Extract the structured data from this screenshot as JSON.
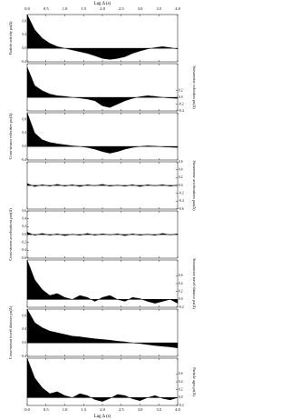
{
  "lag_axis": {
    "label": "Lag Δ (s)",
    "xlim": [
      0,
      4
    ],
    "xticks": [
      {
        "value": 0,
        "label": "0.0"
      },
      0.5,
      {
        "value": 1,
        "label": "1.0"
      },
      1.5,
      {
        "value": 2,
        "label": "2.0"
      },
      2.5,
      {
        "value": 3,
        "label": "3.0"
      },
      3.5,
      {
        "value": 4,
        "label": "4.0"
      }
    ]
  },
  "chart_data": [
    {
      "type": "area",
      "y_label": "Particle activity ρa(Δ)",
      "side": "left",
      "color": "#000000",
      "x": [
        0,
        0.2,
        0.4,
        0.6,
        0.8,
        1,
        1.2,
        1.4,
        1.6,
        1.8,
        2,
        2.2,
        2.4,
        2.6,
        2.8,
        3,
        3.2,
        3.4,
        3.6,
        3.8,
        4
      ],
      "values": [
        1.0,
        0.55,
        0.3,
        0.15,
        0.05,
        0,
        -0.05,
        -0.1,
        -0.15,
        -0.22,
        -0.3,
        -0.33,
        -0.3,
        -0.25,
        -0.15,
        -0.08,
        -0.02,
        0.02,
        0.05,
        0.02,
        -0.02
      ],
      "ylim": [
        -0.4,
        1.0
      ],
      "yticks": [
        -0.4,
        {
          "value": 0,
          "label": "0.0"
        },
        0.4,
        0.8
      ]
    },
    {
      "type": "area",
      "y_label": "Streamwise velocities ρu(Δ)",
      "side": "right",
      "color": "#000000",
      "x": [
        0,
        0.2,
        0.4,
        0.6,
        0.8,
        1,
        1.2,
        1.4,
        1.6,
        1.8,
        2,
        2.2,
        2.4,
        2.6,
        2.8,
        3,
        3.2,
        3.4,
        3.6,
        3.8,
        4
      ],
      "values": [
        0.9,
        0.35,
        0.2,
        0.1,
        0.05,
        0.03,
        0,
        -0.02,
        -0.05,
        -0.1,
        -0.25,
        -0.3,
        -0.2,
        -0.1,
        -0.03,
        0.02,
        0.05,
        0.03,
        0,
        -0.02,
        -0.03
      ],
      "ylim": [
        -0.4,
        1.0
      ],
      "yticks": [
        -0.4,
        -0.2,
        {
          "value": 0,
          "label": "0.0"
        },
        0.2
      ]
    },
    {
      "type": "area",
      "y_label": "Cross-stream velocities ρw(Δ)",
      "side": "left",
      "color": "#000000",
      "x": [
        0,
        0.2,
        0.4,
        0.6,
        0.8,
        1,
        1.2,
        1.4,
        1.6,
        1.8,
        2,
        2.2,
        2.4,
        2.6,
        2.8,
        3,
        3.2,
        3.4,
        3.6,
        3.8,
        4
      ],
      "values": [
        1.0,
        0.4,
        0.2,
        0.12,
        0.08,
        0.05,
        0.02,
        0,
        -0.03,
        -0.08,
        -0.15,
        -0.2,
        -0.15,
        -0.08,
        -0.03,
        0,
        0.02,
        0.01,
        -0.01,
        -0.02,
        -0.03
      ],
      "ylim": [
        -0.4,
        1.0
      ],
      "yticks": [
        -0.4,
        {
          "value": 0,
          "label": "0.0"
        },
        0.4,
        0.8
      ]
    },
    {
      "type": "area",
      "y_label": "Streamwise accelerations ρax(Δ)",
      "side": "right",
      "color": "#000000",
      "x": [
        0,
        0.2,
        0.4,
        0.6,
        0.8,
        1,
        1.2,
        1.4,
        1.6,
        1.8,
        2,
        2.2,
        2.4,
        2.6,
        2.8,
        3,
        3.2,
        3.4,
        3.6,
        3.8,
        4
      ],
      "values": [
        0.05,
        -0.03,
        0.02,
        -0.02,
        0.03,
        -0.02,
        0.02,
        -0.03,
        0.02,
        -0.01,
        0.03,
        -0.02,
        0.01,
        -0.02,
        0.02,
        -0.03,
        0.02,
        -0.01,
        0.02,
        -0.02,
        0.01
      ],
      "ylim": [
        -0.6,
        0.6
      ],
      "yticks": [
        -0.6,
        -0.4,
        -0.2,
        {
          "value": 0,
          "label": "0.0"
        },
        0.2,
        0.4,
        0.6
      ]
    },
    {
      "type": "area",
      "y_label": "Cross-stream accelerations ρaz(Δ)",
      "side": "left",
      "color": "#000000",
      "x": [
        0,
        0.2,
        0.4,
        0.6,
        0.8,
        1,
        1.2,
        1.4,
        1.6,
        1.8,
        2,
        2.2,
        2.4,
        2.6,
        2.8,
        3,
        3.2,
        3.4,
        3.6,
        3.8,
        4
      ],
      "values": [
        0.06,
        -0.02,
        0.03,
        -0.02,
        0.02,
        -0.03,
        0.01,
        -0.02,
        0.03,
        -0.02,
        0.02,
        -0.01,
        0.02,
        -0.03,
        0.02,
        -0.02,
        0.01,
        -0.02,
        0.03,
        -0.01,
        0.02
      ],
      "ylim": [
        -0.6,
        0.6
      ],
      "yticks": [
        -0.6,
        -0.4,
        -0.2,
        {
          "value": 0,
          "label": "0.0"
        },
        0.2,
        0.4,
        0.6
      ]
    },
    {
      "type": "area",
      "y_label": "Streamwise travel distance ρx(Δ)",
      "side": "right",
      "color": "#000000",
      "x": [
        0,
        0.2,
        0.4,
        0.6,
        0.8,
        1,
        1.2,
        1.4,
        1.6,
        1.8,
        2,
        2.2,
        2.4,
        2.6,
        2.8,
        3,
        3.2,
        3.4,
        3.6,
        3.8,
        4
      ],
      "values": [
        1.0,
        0.5,
        0.25,
        0.1,
        0.15,
        0.05,
        0,
        0.1,
        0.05,
        -0.05,
        0.05,
        0.1,
        0,
        -0.05,
        0.05,
        0.02,
        -0.05,
        -0.1,
        -0.05,
        0,
        -0.1
      ],
      "ylim": [
        -0.2,
        1.0
      ],
      "yticks": [
        -0.2,
        {
          "value": 0,
          "label": "0.0"
        },
        0.2,
        0.4,
        0.6
      ]
    },
    {
      "type": "area",
      "y_label": "Cross-stream travel distance ρz(Δ)",
      "side": "left",
      "color": "#000000",
      "x": [
        0,
        0.2,
        0.4,
        0.6,
        0.8,
        1,
        1.2,
        1.4,
        1.6,
        1.8,
        2,
        2.2,
        2.4,
        2.6,
        2.8,
        3,
        3.2,
        3.4,
        3.6,
        3.8,
        4
      ],
      "values": [
        1.0,
        0.6,
        0.45,
        0.35,
        0.3,
        0.25,
        0.2,
        0.18,
        0.15,
        0.12,
        0.1,
        0.08,
        0.05,
        0.03,
        0,
        -0.02,
        -0.05,
        -0.08,
        -0.1,
        -0.12,
        -0.15
      ],
      "ylim": [
        -0.4,
        1.0
      ],
      "yticks": [
        -0.4,
        {
          "value": 0,
          "label": "0.0"
        },
        0.4,
        0.8
      ]
    },
    {
      "type": "area",
      "y_label": "Particle ages ρτ(Δ)",
      "side": "right",
      "color": "#000000",
      "x": [
        0,
        0.2,
        0.4,
        0.6,
        0.8,
        1,
        1.2,
        1.4,
        1.6,
        1.8,
        2,
        2.2,
        2.4,
        2.6,
        2.8,
        3,
        3.2,
        3.4,
        3.6,
        3.8,
        4
      ],
      "values": [
        1.0,
        0.5,
        0.25,
        0.1,
        0.15,
        0.05,
        0,
        0.1,
        0.05,
        -0.05,
        -0.1,
        -0.02,
        0.08,
        0.05,
        -0.03,
        -0.08,
        0,
        0.05,
        -0.02,
        -0.06,
        0
      ],
      "ylim": [
        -0.2,
        1.0
      ],
      "yticks": [
        -0.2,
        {
          "value": 0,
          "label": "0.0"
        },
        0.2,
        0.4,
        0.6
      ]
    }
  ]
}
